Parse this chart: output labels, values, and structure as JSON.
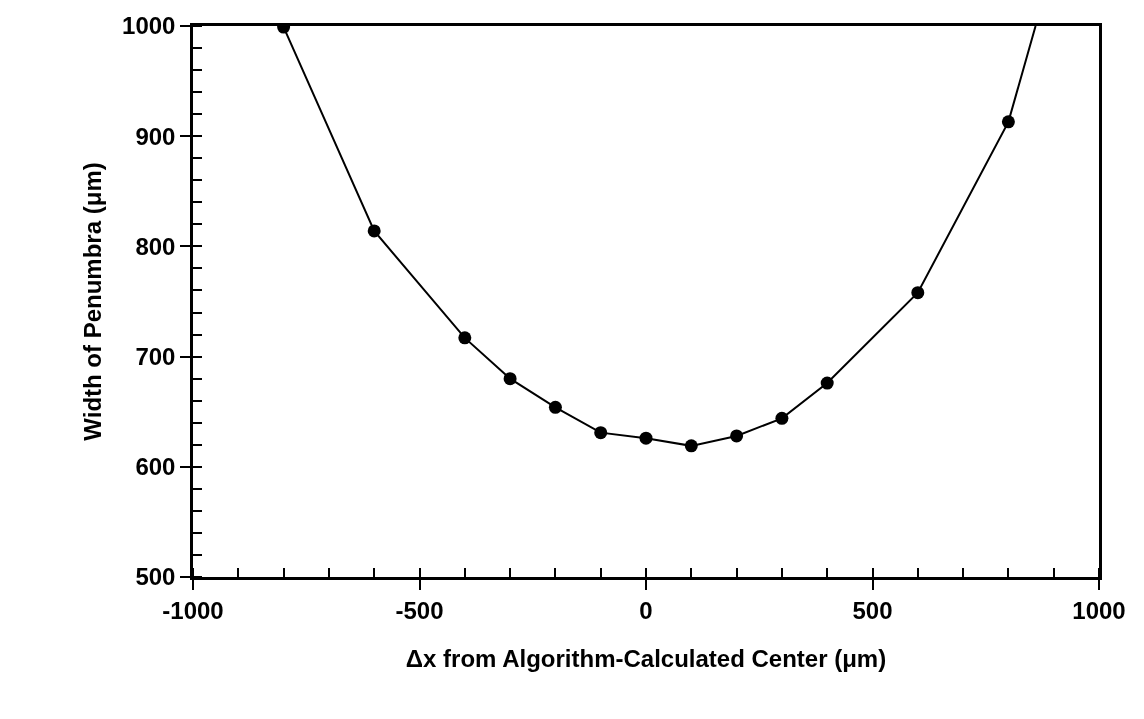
{
  "chart_data": {
    "type": "scatter",
    "xlabel": "Δx from Algorithm-Calculated Center (μm)",
    "ylabel": "Width of Penumbra (μm)",
    "x": [
      -800,
      -600,
      -400,
      -300,
      -200,
      -100,
      0,
      100,
      200,
      300,
      400,
      600,
      800
    ],
    "series": [
      {
        "type": "line",
        "color": "#000000",
        "marker": "none",
        "x": [
          -800,
          -600,
          -400,
          -300,
          -200,
          -100,
          0,
          100,
          200,
          300,
          400,
          600,
          800,
          860
        ],
        "values": [
          999,
          814,
          717,
          680,
          654,
          631,
          626,
          619,
          628,
          644,
          676,
          758,
          913,
          1000
        ]
      },
      {
        "color": "#000000",
        "marker": "circle",
        "values": [
          999,
          814,
          717,
          680,
          654,
          631,
          626,
          619,
          628,
          644,
          676,
          758,
          913
        ]
      }
    ],
    "xlim": [
      -1000,
      1000
    ],
    "xticks": [
      -1000,
      -500,
      0,
      500,
      1000
    ],
    "ylim": [
      500,
      1000
    ],
    "yticks": [
      500,
      600,
      700,
      800,
      900,
      1000
    ]
  }
}
